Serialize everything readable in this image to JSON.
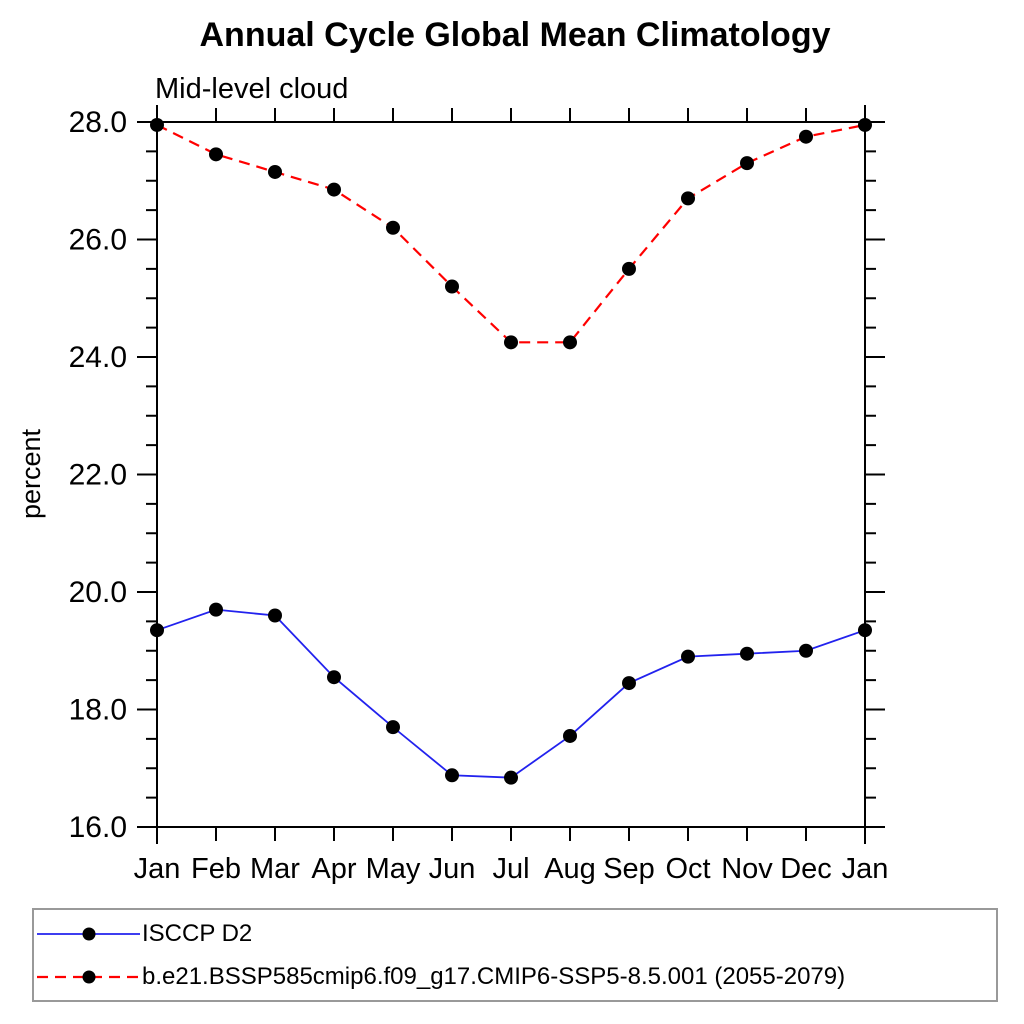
{
  "window": {
    "title": "Annual Cycle Global Mean Climatology"
  },
  "chart_data": {
    "type": "line",
    "title": "Annual Cycle Global Mean Climatology",
    "subtitle": "Mid-level cloud",
    "xlabel": "",
    "ylabel": "percent",
    "categories": [
      "Jan",
      "Feb",
      "Mar",
      "Apr",
      "May",
      "Jun",
      "Jul",
      "Aug",
      "Sep",
      "Oct",
      "Nov",
      "Dec",
      "Jan"
    ],
    "ylim": [
      16.0,
      28.0
    ],
    "y_major_step": 2.0,
    "y_minor_step": 0.5,
    "y_tick_labels": [
      "16.0",
      "18.0",
      "20.0",
      "22.0",
      "24.0",
      "26.0",
      "28.0"
    ],
    "grid": false,
    "legend_position": "bottom",
    "series": [
      {
        "name": "ISCCP D2",
        "style": "solid",
        "color": "#2222ee",
        "marker": "circle",
        "marker_color": "#000000",
        "values": [
          19.35,
          19.7,
          19.6,
          18.55,
          17.7,
          16.88,
          16.84,
          17.55,
          18.45,
          18.9,
          18.95,
          19.0,
          19.35
        ]
      },
      {
        "name": "b.e21.BSSP585cmip6.f09_g17.CMIP6-SSP5-8.5.001 (2055-2079)",
        "style": "dashed",
        "color": "#ff0000",
        "marker": "circle",
        "marker_color": "#000000",
        "values": [
          27.95,
          27.45,
          27.15,
          26.85,
          26.2,
          25.2,
          24.25,
          24.25,
          25.5,
          26.7,
          27.3,
          27.75,
          27.95
        ]
      }
    ]
  },
  "colors": {
    "axis": "#000000",
    "legend_border": "#999999",
    "background": "#ffffff"
  }
}
